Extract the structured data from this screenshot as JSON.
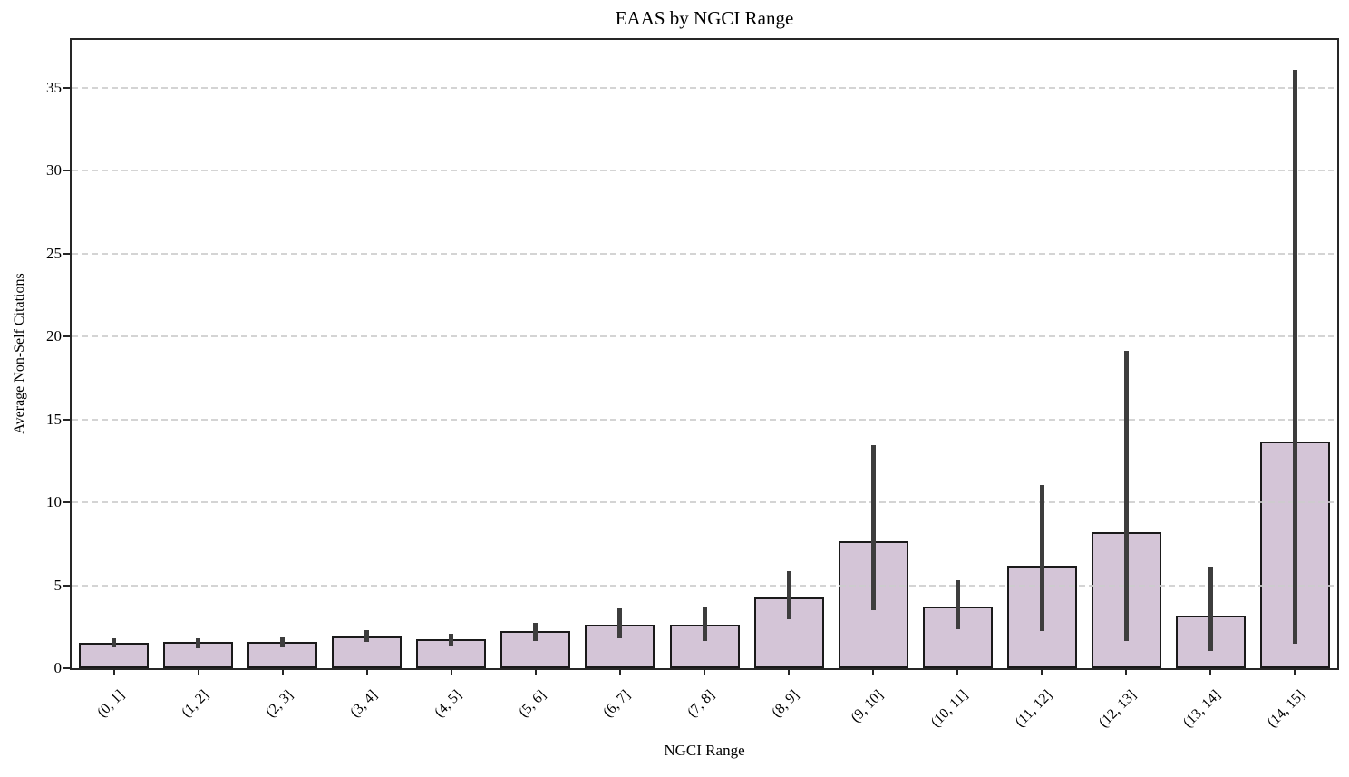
{
  "chart_data": {
    "type": "bar",
    "title": "EAAS by NGCI Range",
    "xlabel": "NGCI Range",
    "ylabel": "Average Non-Self Citations",
    "categories": [
      "(0, 1]",
      "(1, 2]",
      "(2, 3]",
      "(3, 4]",
      "(4, 5]",
      "(5, 6]",
      "(6, 7]",
      "(7, 8]",
      "(8, 9]",
      "(9, 10]",
      "(10, 11]",
      "(11, 12]",
      "(12, 13]",
      "(13, 14]",
      "(14, 15]"
    ],
    "values": [
      1.52,
      1.57,
      1.58,
      1.9,
      1.77,
      2.22,
      2.61,
      2.63,
      4.25,
      7.68,
      3.7,
      6.2,
      8.18,
      3.16,
      13.65
    ],
    "error_low": [
      1.25,
      1.2,
      1.25,
      1.6,
      1.4,
      1.66,
      1.78,
      1.62,
      2.95,
      3.5,
      2.35,
      2.25,
      1.65,
      1.0,
      1.5
    ],
    "error_high": [
      1.8,
      1.8,
      1.85,
      2.3,
      2.1,
      2.75,
      3.6,
      3.66,
      5.85,
      13.45,
      5.3,
      11.05,
      19.15,
      6.1,
      36.1
    ],
    "ylim": [
      0,
      37.9
    ],
    "yticks": [
      0,
      5,
      10,
      15,
      20,
      25,
      30,
      35
    ],
    "grid": "horizontal dashed, drawn above bars",
    "legend": "none",
    "bar_fill_color": "#d4c5d7",
    "bar_edge_color": "#1a1a1a",
    "error_bar_color": "#3d3d3d",
    "grid_color": "#cccccc",
    "spine_color": "#262626",
    "background_color": "#ffffff"
  }
}
